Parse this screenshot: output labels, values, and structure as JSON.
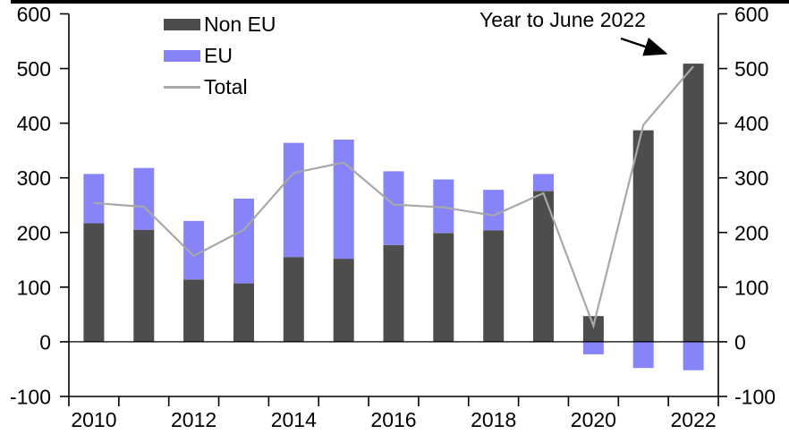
{
  "chart_data": {
    "type": "bar",
    "stacked": true,
    "title": "",
    "categories": [
      "2010",
      "2011",
      "2012",
      "2013",
      "2014",
      "2015",
      "2016",
      "2017",
      "2018",
      "2019",
      "2020",
      "2021",
      "2022"
    ],
    "series": [
      {
        "name": "Non EU",
        "type": "bar",
        "color": "#4d4d4d",
        "values": [
          217,
          205,
          114,
          107,
          155,
          152,
          177,
          199,
          204,
          276,
          47,
          387,
          509
        ]
      },
      {
        "name": "EU",
        "type": "bar",
        "color": "#8684f8",
        "values": [
          90,
          113,
          107,
          155,
          209,
          218,
          135,
          98,
          74,
          31,
          -23,
          -48,
          -52
        ]
      },
      {
        "name": "Total",
        "type": "line",
        "color": "#a8a8a8",
        "values": [
          254,
          247,
          157,
          205,
          309,
          328,
          251,
          246,
          231,
          272,
          29,
          397,
          504
        ]
      }
    ],
    "ylim": [
      -100,
      600
    ],
    "yticks": [
      600,
      500,
      400,
      300,
      200,
      100,
      0,
      -100
    ],
    "y_axis_both_sides": true,
    "grid": false,
    "xtick_labels": [
      "2010",
      "2012",
      "2014",
      "2016",
      "2018",
      "2020",
      "2022"
    ],
    "legend_position": "top-left-inside",
    "annotation": {
      "text": "Year to June 2022",
      "points_to": "2022"
    }
  },
  "colors": {
    "axis": "#000000",
    "background": "#ffffff",
    "top_border": "#000000"
  }
}
